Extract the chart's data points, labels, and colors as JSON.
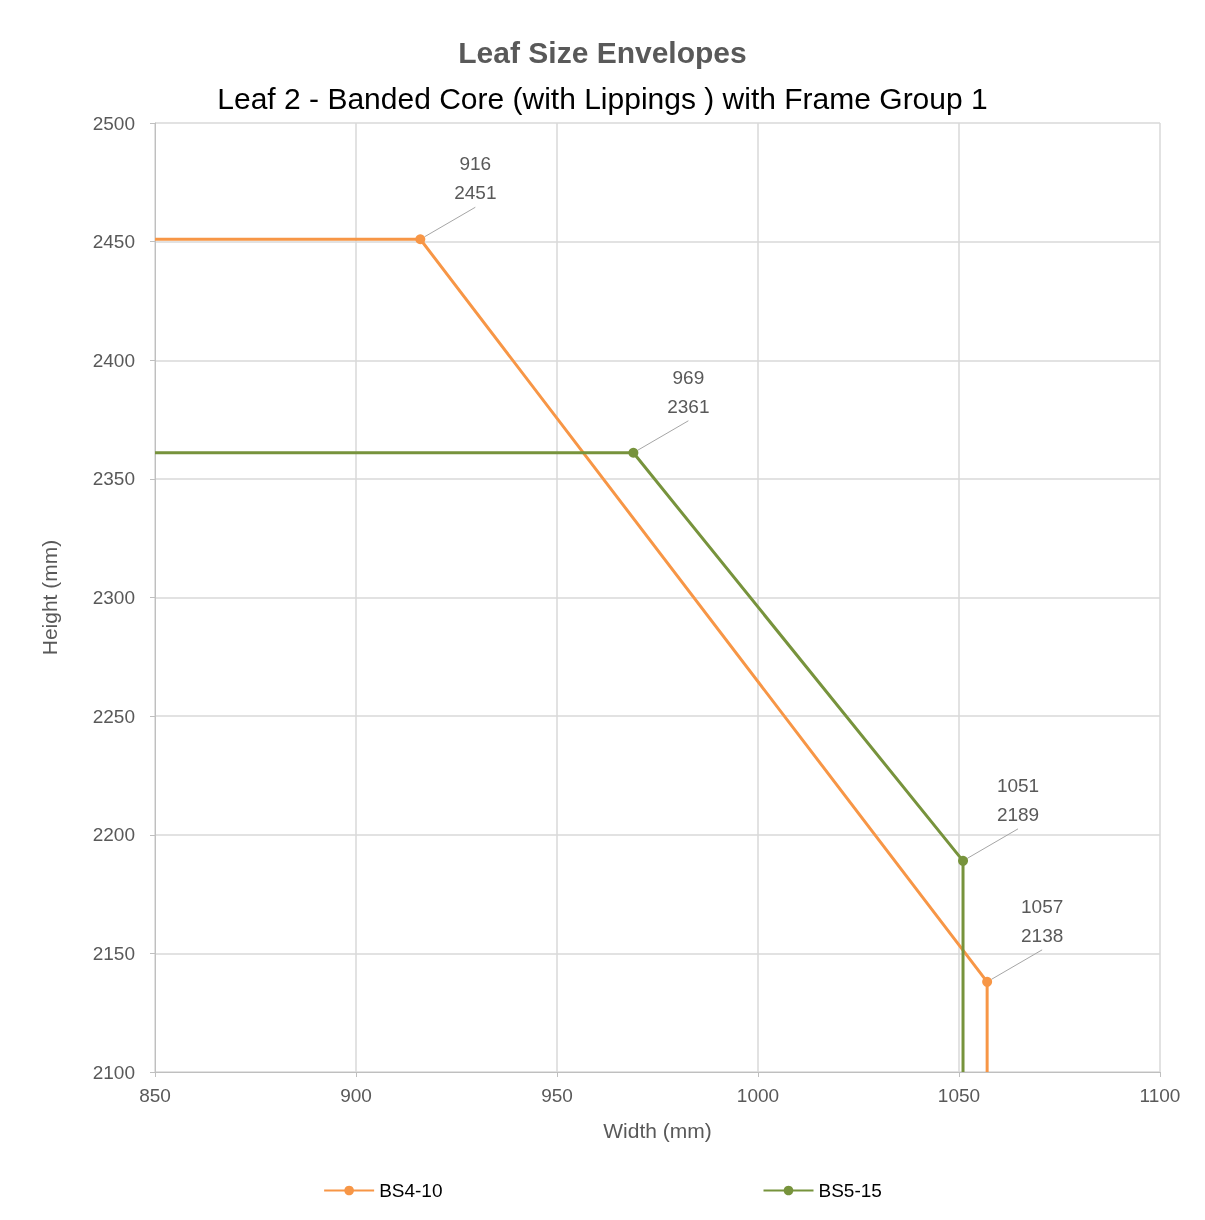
{
  "chart_data": {
    "type": "line",
    "title": "Leaf Size Envelopes",
    "subtitle": "Leaf 2 - Banded Core (with Lippings ) with Frame Group 1",
    "xlabel": "Width (mm)",
    "ylabel": "Height (mm)",
    "series": [
      {
        "name": "BS4-10",
        "color": "#f79646",
        "x": [
          850,
          916,
          1057,
          1057
        ],
        "values": [
          2451,
          2451,
          2138,
          2100
        ],
        "value_labels": [
          null,
          "916\n2451",
          "1057\n2138",
          null
        ]
      },
      {
        "name": "BS5-15",
        "color": "#77933c",
        "x": [
          850,
          969,
          1051,
          1051
        ],
        "values": [
          2361,
          2361,
          2189,
          2100
        ],
        "value_labels": [
          null,
          "969\n2361",
          "1051\n2189",
          null
        ]
      }
    ],
    "xlim": [
      850,
      1100
    ],
    "xticks": [
      850,
      900,
      950,
      1000,
      1050,
      1100
    ],
    "ylim": [
      2100,
      2500
    ],
    "yticks": [
      2100,
      2150,
      2200,
      2250,
      2300,
      2350,
      2400,
      2450,
      2500
    ],
    "grid": true,
    "legend": "bottom",
    "marker": "circle",
    "line_style": "solid"
  }
}
